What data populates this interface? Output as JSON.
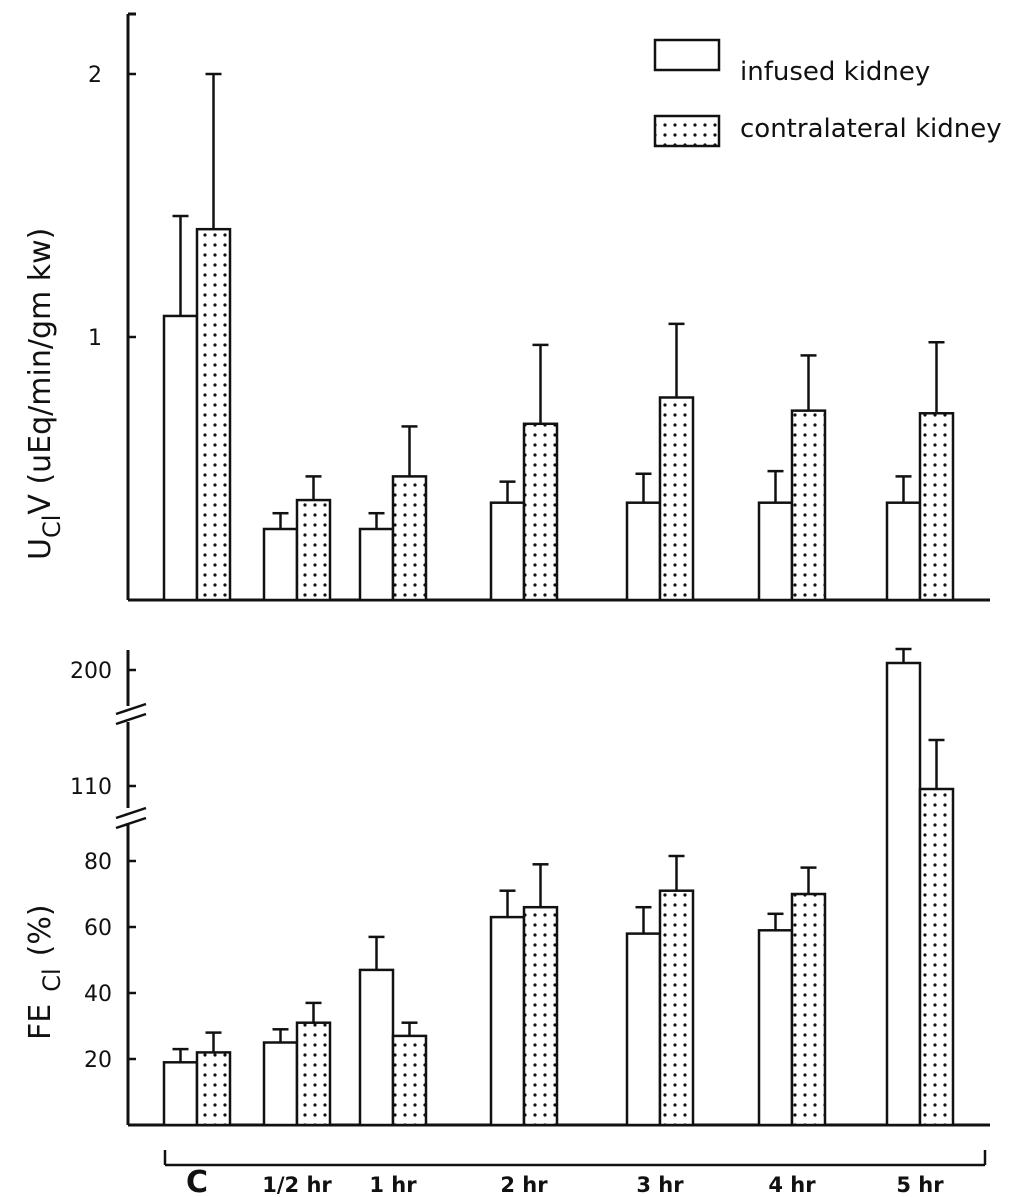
{
  "chart_data": [
    {
      "type": "bar",
      "ylabel": "U",
      "ylabel_sub": "Cl",
      "ylabel_rest": "V (uEq/min/gm kw)",
      "y_ticks": [
        "1",
        "2"
      ],
      "ylim": [
        0,
        2.2
      ],
      "categories": [
        "C",
        "1/2 hr",
        "1 hr",
        "2 hr",
        "3 hr",
        "4 hr",
        "5 hr"
      ],
      "series": [
        {
          "name": "infused kidney",
          "fill": "white",
          "values": [
            1.08,
            0.27,
            0.27,
            0.37,
            0.37,
            0.37,
            0.37
          ],
          "errors": [
            0.38,
            0.06,
            0.06,
            0.08,
            0.11,
            0.12,
            0.1
          ]
        },
        {
          "name": "contralateral kidney",
          "fill": "dotted",
          "values": [
            1.41,
            0.38,
            0.47,
            0.67,
            0.77,
            0.72,
            0.71
          ],
          "errors": [
            0.59,
            0.09,
            0.19,
            0.3,
            0.28,
            0.21,
            0.27
          ]
        }
      ],
      "legend": [
        "infused kidney",
        "contralateral kidney"
      ],
      "legend_position": "top-right"
    },
    {
      "type": "bar",
      "ylabel": "FE",
      "ylabel_sub": "Cl",
      "ylabel_rest": "(%)",
      "y_ticks": [
        "20",
        "40",
        "60",
        "80",
        "110",
        "200"
      ],
      "axis_breaks": [
        "between 80 and 110",
        "between 110 and 200"
      ],
      "categories": [
        "C",
        "1/2 hr",
        "1 hr",
        "2 hr",
        "3 hr",
        "4 hr",
        "5 hr"
      ],
      "series": [
        {
          "name": "infused kidney",
          "fill": "white",
          "values": [
            19,
            25,
            47,
            63,
            58,
            59,
            205
          ],
          "errors": [
            4,
            4,
            10,
            8,
            8,
            5,
            10
          ]
        },
        {
          "name": "contralateral kidney",
          "fill": "dotted",
          "values": [
            22,
            31,
            27,
            66,
            71,
            70,
            115
          ],
          "errors": [
            6,
            6,
            4,
            13,
            11,
            8,
            35
          ]
        }
      ]
    }
  ],
  "x_categories": [
    "C",
    "1/2 hr",
    "1 hr",
    "2 hr",
    "3 hr",
    "4 hr",
    "5 hr"
  ]
}
